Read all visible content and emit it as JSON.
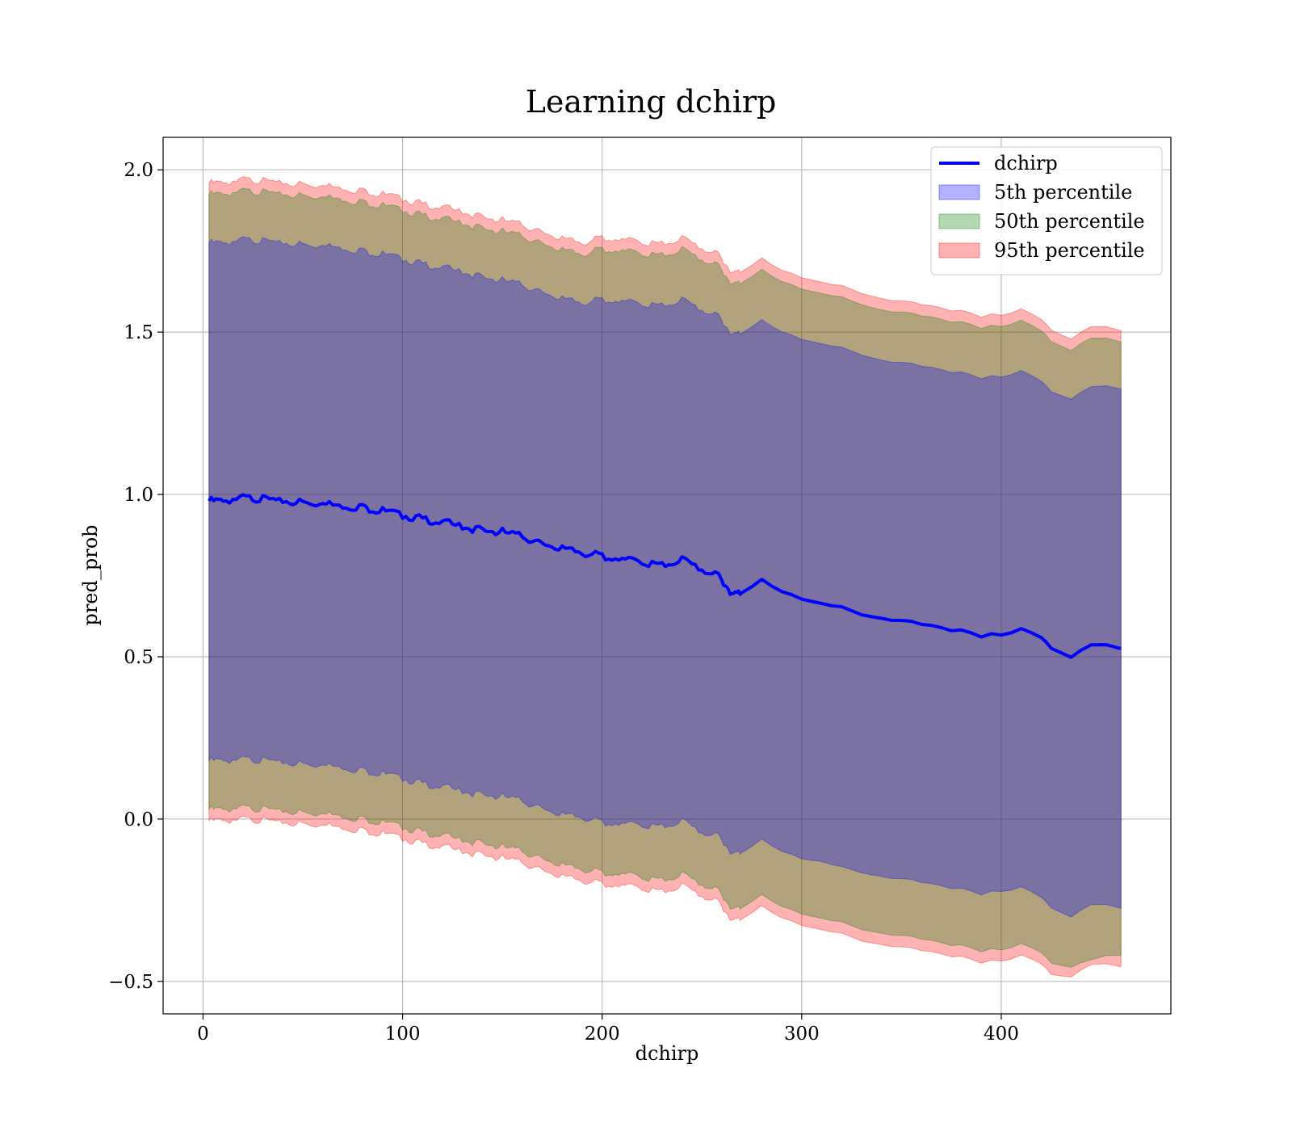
{
  "chart_data": {
    "type": "area",
    "title": "Learning dchirp",
    "xlabel": "dchirp",
    "ylabel": "pred_prob",
    "xlim": [
      -20,
      485
    ],
    "ylim": [
      -0.6,
      2.1
    ],
    "xticks": [
      0,
      100,
      200,
      300,
      400
    ],
    "xtick_labels": [
      "0",
      "100",
      "200",
      "300",
      "400"
    ],
    "yticks": [
      -0.5,
      0.0,
      0.5,
      1.0,
      1.5,
      2.0
    ],
    "ytick_labels": [
      "−0.5",
      "0.0",
      "0.5",
      "1.0",
      "1.5",
      "2.0"
    ],
    "grid": true,
    "legend_position": "top-right",
    "legend": [
      {
        "label": "dchirp",
        "kind": "line",
        "color": "#0000ff"
      },
      {
        "label": "5th percentile",
        "kind": "patch",
        "color": "#0000ff"
      },
      {
        "label": "50th percentile",
        "kind": "patch",
        "color": "#008000"
      },
      {
        "label": "95th percentile",
        "kind": "patch",
        "color": "#ff0000"
      }
    ],
    "x": [
      3,
      10,
      20,
      30,
      40,
      50,
      60,
      70,
      80,
      90,
      100,
      110,
      120,
      130,
      140,
      150,
      160,
      170,
      180,
      190,
      200,
      210,
      220,
      230,
      240,
      250,
      260,
      265,
      270,
      280,
      290,
      300,
      310,
      320,
      330,
      340,
      350,
      360,
      370,
      380,
      390,
      400,
      410,
      420,
      425,
      435,
      445,
      460
    ],
    "mean": [
      0.98,
      0.98,
      0.99,
      0.985,
      0.98,
      0.975,
      0.97,
      0.965,
      0.96,
      0.95,
      0.935,
      0.925,
      0.915,
      0.9,
      0.89,
      0.885,
      0.87,
      0.85,
      0.83,
      0.82,
      0.81,
      0.8,
      0.79,
      0.78,
      0.8,
      0.77,
      0.74,
      0.69,
      0.7,
      0.74,
      0.7,
      0.68,
      0.665,
      0.65,
      0.63,
      0.62,
      0.61,
      0.6,
      0.59,
      0.58,
      0.565,
      0.57,
      0.585,
      0.56,
      0.53,
      0.495,
      0.54,
      0.525
    ],
    "series": [
      {
        "name": "5th percentile",
        "color": "#0000ff",
        "opacity": 0.3,
        "lower": [
          0.18,
          0.18,
          0.185,
          0.18,
          0.175,
          0.17,
          0.165,
          0.16,
          0.15,
          0.14,
          0.125,
          0.11,
          0.1,
          0.085,
          0.075,
          0.07,
          0.055,
          0.035,
          0.01,
          0.005,
          -0.01,
          -0.015,
          -0.02,
          -0.025,
          -0.005,
          -0.04,
          -0.06,
          -0.11,
          -0.1,
          -0.06,
          -0.1,
          -0.12,
          -0.13,
          -0.15,
          -0.165,
          -0.175,
          -0.185,
          -0.195,
          -0.205,
          -0.215,
          -0.23,
          -0.22,
          -0.21,
          -0.24,
          -0.27,
          -0.305,
          -0.26,
          -0.275
        ],
        "upper": [
          1.775,
          1.775,
          1.785,
          1.78,
          1.775,
          1.77,
          1.765,
          1.76,
          1.75,
          1.74,
          1.725,
          1.71,
          1.7,
          1.685,
          1.67,
          1.66,
          1.645,
          1.625,
          1.6,
          1.59,
          1.6,
          1.595,
          1.585,
          1.58,
          1.6,
          1.57,
          1.54,
          1.49,
          1.5,
          1.54,
          1.5,
          1.48,
          1.465,
          1.45,
          1.43,
          1.415,
          1.405,
          1.395,
          1.385,
          1.375,
          1.36,
          1.365,
          1.38,
          1.35,
          1.32,
          1.29,
          1.335,
          1.325
        ]
      },
      {
        "name": "50th percentile",
        "color": "#008000",
        "opacity": 0.3,
        "lower": [
          0.03,
          0.03,
          0.035,
          0.03,
          0.025,
          0.02,
          0.015,
          0.01,
          0.0,
          -0.01,
          -0.025,
          -0.04,
          -0.05,
          -0.065,
          -0.075,
          -0.085,
          -0.1,
          -0.12,
          -0.145,
          -0.155,
          -0.165,
          -0.17,
          -0.18,
          -0.19,
          -0.17,
          -0.2,
          -0.23,
          -0.28,
          -0.27,
          -0.23,
          -0.27,
          -0.29,
          -0.305,
          -0.32,
          -0.34,
          -0.35,
          -0.36,
          -0.37,
          -0.38,
          -0.39,
          -0.405,
          -0.4,
          -0.385,
          -0.41,
          -0.44,
          -0.46,
          -0.43,
          -0.42
        ],
        "upper": [
          1.925,
          1.925,
          1.935,
          1.93,
          1.925,
          1.92,
          1.915,
          1.91,
          1.9,
          1.89,
          1.875,
          1.86,
          1.85,
          1.835,
          1.82,
          1.81,
          1.795,
          1.775,
          1.75,
          1.74,
          1.755,
          1.75,
          1.74,
          1.735,
          1.755,
          1.725,
          1.695,
          1.645,
          1.655,
          1.695,
          1.655,
          1.635,
          1.62,
          1.605,
          1.585,
          1.57,
          1.56,
          1.55,
          1.54,
          1.53,
          1.515,
          1.52,
          1.535,
          1.505,
          1.475,
          1.44,
          1.485,
          1.47
        ]
      },
      {
        "name": "95th percentile",
        "color": "#ff0000",
        "opacity": 0.3,
        "lower": [
          -0.005,
          -0.005,
          0.0,
          -0.005,
          -0.01,
          -0.015,
          -0.02,
          -0.025,
          -0.035,
          -0.045,
          -0.06,
          -0.075,
          -0.085,
          -0.1,
          -0.11,
          -0.12,
          -0.135,
          -0.155,
          -0.18,
          -0.19,
          -0.2,
          -0.205,
          -0.215,
          -0.225,
          -0.205,
          -0.235,
          -0.265,
          -0.315,
          -0.305,
          -0.265,
          -0.305,
          -0.325,
          -0.34,
          -0.355,
          -0.375,
          -0.385,
          -0.395,
          -0.405,
          -0.415,
          -0.425,
          -0.44,
          -0.435,
          -0.42,
          -0.445,
          -0.475,
          -0.49,
          -0.445,
          -0.455
        ],
        "upper": [
          1.96,
          1.96,
          1.97,
          1.965,
          1.96,
          1.955,
          1.95,
          1.945,
          1.935,
          1.925,
          1.91,
          1.895,
          1.885,
          1.87,
          1.855,
          1.845,
          1.83,
          1.81,
          1.785,
          1.775,
          1.79,
          1.785,
          1.775,
          1.77,
          1.79,
          1.76,
          1.73,
          1.68,
          1.69,
          1.73,
          1.69,
          1.67,
          1.655,
          1.64,
          1.62,
          1.605,
          1.595,
          1.585,
          1.575,
          1.565,
          1.55,
          1.555,
          1.57,
          1.54,
          1.51,
          1.475,
          1.52,
          1.505
        ]
      }
    ]
  }
}
